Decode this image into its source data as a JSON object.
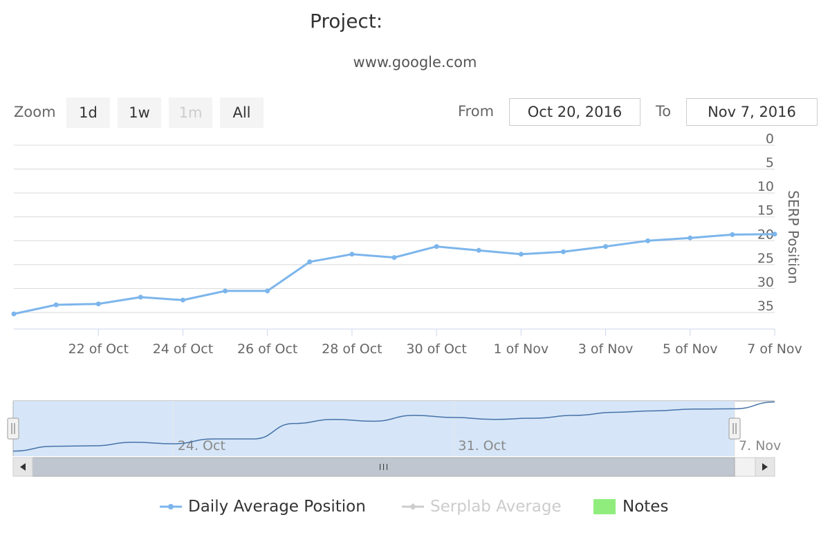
{
  "header": {
    "title": "Project:",
    "subtitle": "www.google.com"
  },
  "range_selector": {
    "zoom_label": "Zoom",
    "buttons": [
      {
        "label": "1d",
        "enabled": true
      },
      {
        "label": "1w",
        "enabled": true
      },
      {
        "label": "1m",
        "enabled": false
      },
      {
        "label": "All",
        "enabled": true
      }
    ],
    "from_label": "From",
    "from_value": "Oct 20, 2016",
    "to_label": "To",
    "to_value": "Nov 7, 2016"
  },
  "colors": {
    "series_line": "#7cb5ec",
    "navigator_line": "#4572a7",
    "navigator_mask": "#d6e6f8",
    "gridline": "#d8d8d8",
    "notes": "#90ed7d",
    "inactive_legend": "#cccccc"
  },
  "chart_data": {
    "type": "line",
    "x_type": "date",
    "y_axis": {
      "title": "SERP Position",
      "reversed": true,
      "opposite": true,
      "min": 0,
      "max": 35,
      "ticks": [
        0,
        5,
        10,
        15,
        20,
        25,
        30,
        35
      ]
    },
    "x_axis": {
      "min": "2016-10-20",
      "max": "2016-11-07",
      "tick_labels": [
        {
          "date": "2016-10-22",
          "label": "22 of Oct"
        },
        {
          "date": "2016-10-24",
          "label": "24 of Oct"
        },
        {
          "date": "2016-10-26",
          "label": "26 of Oct"
        },
        {
          "date": "2016-10-28",
          "label": "28 of Oct"
        },
        {
          "date": "2016-10-30",
          "label": "30 of Oct"
        },
        {
          "date": "2016-11-01",
          "label": "1 of Nov"
        },
        {
          "date": "2016-11-03",
          "label": "3 of Nov"
        },
        {
          "date": "2016-11-05",
          "label": "5 of Nov"
        },
        {
          "date": "2016-11-07",
          "label": "7 of Nov"
        }
      ]
    },
    "series": [
      {
        "name": "Daily Average Position",
        "visible": true,
        "points": [
          {
            "x": "2016-10-20",
            "y": 36.9
          },
          {
            "x": "2016-10-21",
            "y": 35.0
          },
          {
            "x": "2016-10-22",
            "y": 34.8
          },
          {
            "x": "2016-10-23",
            "y": 33.4
          },
          {
            "x": "2016-10-24",
            "y": 34.0
          },
          {
            "x": "2016-10-25",
            "y": 32.1
          },
          {
            "x": "2016-10-26",
            "y": 32.1
          },
          {
            "x": "2016-10-27",
            "y": 26.0
          },
          {
            "x": "2016-10-28",
            "y": 24.4
          },
          {
            "x": "2016-10-29",
            "y": 25.1
          },
          {
            "x": "2016-10-30",
            "y": 22.8
          },
          {
            "x": "2016-10-31",
            "y": 23.6
          },
          {
            "x": "2016-11-01",
            "y": 24.4
          },
          {
            "x": "2016-11-02",
            "y": 23.9
          },
          {
            "x": "2016-11-03",
            "y": 22.8
          },
          {
            "x": "2016-11-04",
            "y": 21.6
          },
          {
            "x": "2016-11-05",
            "y": 21.0
          },
          {
            "x": "2016-11-06",
            "y": 20.3
          },
          {
            "x": "2016-11-07",
            "y": 20.2
          }
        ]
      },
      {
        "name": "Serplab Average",
        "visible": false,
        "points": []
      }
    ],
    "legend": {
      "position": "bottom",
      "items": [
        {
          "name": "Daily Average Position",
          "active": true
        },
        {
          "name": "Serplab Average",
          "active": false
        },
        {
          "name": "Notes",
          "active": true
        }
      ]
    },
    "navigator": {
      "min": "2016-10-20",
      "max": "2016-11-08",
      "selected_from": "2016-10-20",
      "selected_to": "2016-11-07",
      "tick_labels": [
        {
          "date": "2016-10-24",
          "label": "24. Oct"
        },
        {
          "date": "2016-10-31",
          "label": "31. Oct"
        },
        {
          "date": "2016-11-07",
          "label": "7. Nov"
        }
      ],
      "extra_points": [
        {
          "x": "2016-11-08",
          "y": 17.5
        }
      ]
    }
  }
}
